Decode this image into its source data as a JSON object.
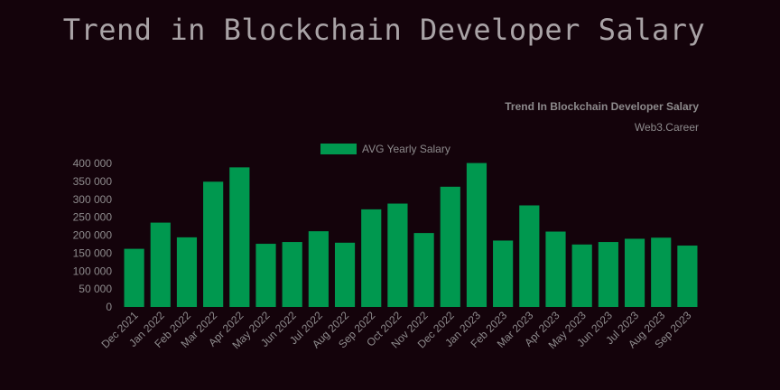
{
  "page": {
    "title": "Trend in Blockchain Developer Salary"
  },
  "colors": {
    "background": "#14030b",
    "bar": "#00984f",
    "text": "#8d8a8c",
    "title": "#a9a3a6"
  },
  "chart_data": {
    "type": "bar",
    "title": "Trend In Blockchain Developer Salary",
    "subtitle": "Web3.Career",
    "legend_position": "top",
    "grid": false,
    "categories": [
      "Dec 2021",
      "Jan 2022",
      "Feb 2022",
      "Mar 2022",
      "Apr 2022",
      "May 2022",
      "Jun 2022",
      "Jul 2022",
      "Aug 2022",
      "Sep 2022",
      "Oct 2022",
      "Nov 2022",
      "Dec 2022",
      "Jan 2023",
      "Feb 2023",
      "Mar 2023",
      "Apr 2023",
      "May 2023",
      "Jun 2023",
      "Jul 2023",
      "Aug 2023",
      "Sep 2023"
    ],
    "series": [
      {
        "name": "AVG Yearly Salary",
        "values": [
          162000,
          235000,
          194000,
          349000,
          389000,
          176000,
          181000,
          211000,
          179000,
          272000,
          288000,
          206000,
          335000,
          401000,
          185000,
          283000,
          210000,
          174000,
          181000,
          190000,
          193000,
          171000
        ]
      }
    ],
    "ylim": [
      0,
      400000
    ],
    "yticks": [
      "0",
      "50 000",
      "100 000",
      "150 000",
      "200 000",
      "250 000",
      "300 000",
      "350 000",
      "400 000"
    ],
    "ytick_values": [
      0,
      50000,
      100000,
      150000,
      200000,
      250000,
      300000,
      350000,
      400000
    ]
  }
}
